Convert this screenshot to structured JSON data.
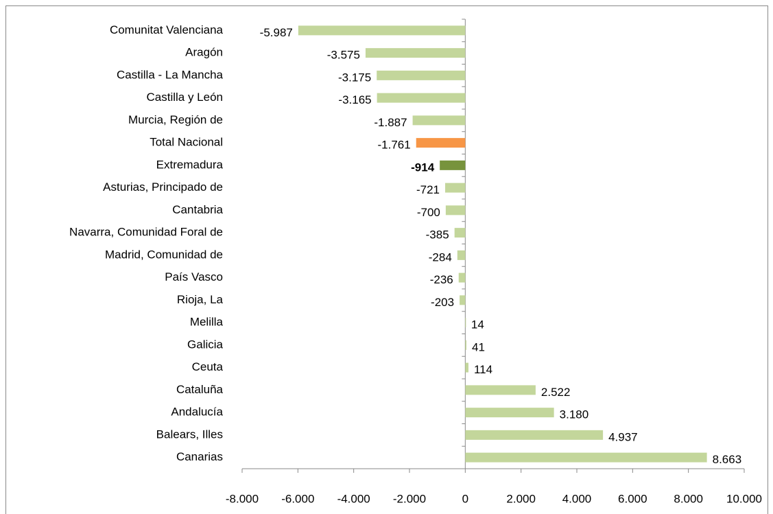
{
  "chart_data": {
    "type": "hbar",
    "categories": [
      "Comunitat Valenciana",
      "Aragón",
      "Castilla - La Mancha",
      "Castilla y León",
      "Murcia, Región de",
      "Total Nacional",
      "Extremadura",
      "Asturias, Principado de",
      "Cantabria",
      "Navarra, Comunidad  Foral de",
      "Madrid, Comunidad de",
      "País Vasco",
      "Rioja, La",
      "Melilla",
      "Galicia",
      "Ceuta",
      "Cataluña",
      "Andalucía",
      "Balears, Illes",
      "Canarias"
    ],
    "values": [
      -5987,
      -3575,
      -3175,
      -3165,
      -1887,
      -1761,
      -914,
      -721,
      -700,
      -385,
      -284,
      -236,
      -203,
      14,
      41,
      114,
      2522,
      3180,
      4937,
      8663
    ],
    "value_labels": [
      "-5.987",
      "-3.575",
      "-3.175",
      "-3.165",
      "-1.887",
      "-1.761",
      "-914",
      "-721",
      "-700",
      "-385",
      "-284",
      "-236",
      "-203",
      "14",
      "41",
      "114",
      "2.522",
      "3.180",
      "4.937",
      "8.663"
    ],
    "colors": [
      "#c3d69b",
      "#c3d69b",
      "#c3d69b",
      "#c3d69b",
      "#c3d69b",
      "#f79646",
      "#77933c",
      "#c3d69b",
      "#c3d69b",
      "#c3d69b",
      "#c3d69b",
      "#c3d69b",
      "#c3d69b",
      "#c3d69b",
      "#c3d69b",
      "#c3d69b",
      "#c3d69b",
      "#c3d69b",
      "#c3d69b",
      "#c3d69b"
    ],
    "value_label_bold": [
      false,
      false,
      false,
      false,
      false,
      false,
      true,
      false,
      false,
      false,
      false,
      false,
      false,
      false,
      false,
      false,
      false,
      false,
      false,
      false
    ],
    "xlim": [
      -8000,
      10000
    ],
    "xticks": [
      {
        "value": -8000,
        "label": "-8.000"
      },
      {
        "value": -6000,
        "label": "-6.000"
      },
      {
        "value": -4000,
        "label": "-4.000"
      },
      {
        "value": -2000,
        "label": "-2.000"
      },
      0,
      {
        "value": 2000,
        "label": "2.000"
      },
      {
        "value": 4000,
        "label": "4.000"
      },
      {
        "value": 6000,
        "label": "6.000"
      },
      {
        "value": 8000,
        "label": "8.000"
      },
      {
        "value": 10000,
        "label": "10.000"
      }
    ],
    "grid": false
  }
}
